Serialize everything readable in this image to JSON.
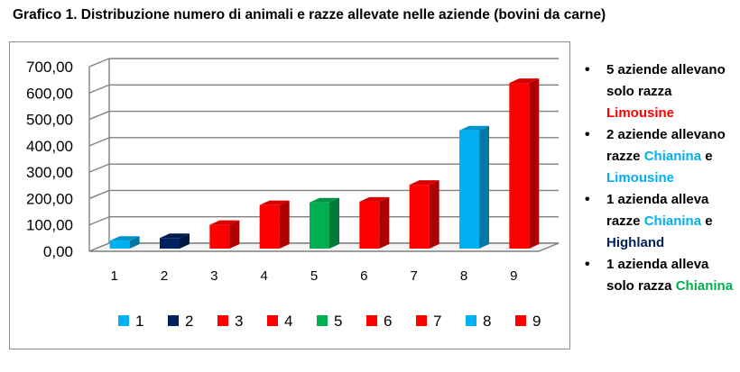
{
  "title": "Grafico 1. Distribuzione numero di animali e razze allevate nelle aziende (bovini da carne)",
  "chart_data": {
    "type": "bar",
    "categories": [
      "1",
      "2",
      "3",
      "4",
      "5",
      "6",
      "7",
      "8",
      "9"
    ],
    "values": [
      30,
      40,
      90,
      165,
      175,
      178,
      242,
      448,
      628
    ],
    "colors": [
      "#00b0f0",
      "#002060",
      "#ff0000",
      "#ff0000",
      "#00b050",
      "#ff0000",
      "#ff0000",
      "#00b0f0",
      "#ff0000"
    ],
    "legend": [
      "1",
      "2",
      "3",
      "4",
      "5",
      "6",
      "7",
      "8",
      "9"
    ],
    "legend_position": "bottom",
    "ylim": [
      0,
      700
    ],
    "yticks": [
      "0,00",
      "100,00",
      "200,00",
      "300,00",
      "400,00",
      "500,00",
      "600,00",
      "700,00"
    ],
    "grid": true,
    "style": "3d-column"
  },
  "notes": [
    {
      "parts": [
        {
          "text": "5 aziende allevano solo razza ",
          "color": ""
        },
        {
          "text": "Limousine",
          "color": "red"
        }
      ]
    },
    {
      "parts": [
        {
          "text": "2 aziende allevano razze ",
          "color": ""
        },
        {
          "text": "Chianina",
          "color": "cyan"
        },
        {
          "text": " e ",
          "color": ""
        },
        {
          "text": "Limousine",
          "color": "cyan"
        }
      ]
    },
    {
      "parts": [
        {
          "text": "1 azienda alleva razze ",
          "color": ""
        },
        {
          "text": "Chianina",
          "color": "cyan"
        },
        {
          "text": " e ",
          "color": ""
        },
        {
          "text": "Highland",
          "color": "navy"
        }
      ]
    },
    {
      "parts": [
        {
          "text": "1 azienda alleva solo razza ",
          "color": ""
        },
        {
          "text": "Chianina",
          "color": "green"
        }
      ]
    }
  ]
}
